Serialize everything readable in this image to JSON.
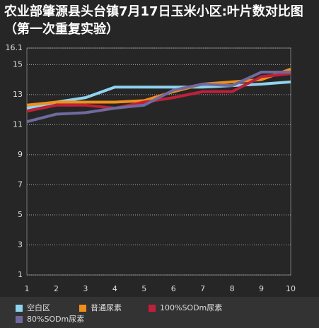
{
  "chart_data": {
    "type": "line",
    "title": "农业部肇源县头台镇7月17日玉米小区:叶片数对比图（第一次重复实验）",
    "x": [
      1,
      2,
      3,
      4,
      5,
      6,
      7,
      8,
      9,
      10
    ],
    "xlim": [
      1,
      10
    ],
    "xticks": [
      1,
      2,
      3,
      4,
      5,
      6,
      7,
      8,
      9,
      10
    ],
    "ylim": [
      1,
      16.1
    ],
    "yticks": [
      1,
      3,
      5,
      7,
      9,
      11,
      13,
      15,
      16.1
    ],
    "grid": true,
    "legend": "bottom",
    "series": [
      {
        "name": "空白区",
        "color": "#8fd3f0",
        "values": [
          12.1,
          12.5,
          12.8,
          13.5,
          13.5,
          13.5,
          13.5,
          13.6,
          13.7,
          13.85
        ]
      },
      {
        "name": "普通尿素",
        "color": "#f0901a",
        "values": [
          12.3,
          12.5,
          12.5,
          12.5,
          12.6,
          13.2,
          13.7,
          13.85,
          14.0,
          14.7
        ]
      },
      {
        "name": "100%SODm尿素",
        "color": "#c0203a",
        "values": [
          11.9,
          12.3,
          12.3,
          12.1,
          12.5,
          12.8,
          13.2,
          13.2,
          14.2,
          14.4
        ]
      },
      {
        "name": "80%SODm尿素",
        "color": "#6f6a9e",
        "values": [
          11.2,
          11.7,
          11.8,
          12.1,
          12.3,
          13.3,
          13.7,
          13.6,
          14.5,
          14.5
        ]
      }
    ]
  }
}
